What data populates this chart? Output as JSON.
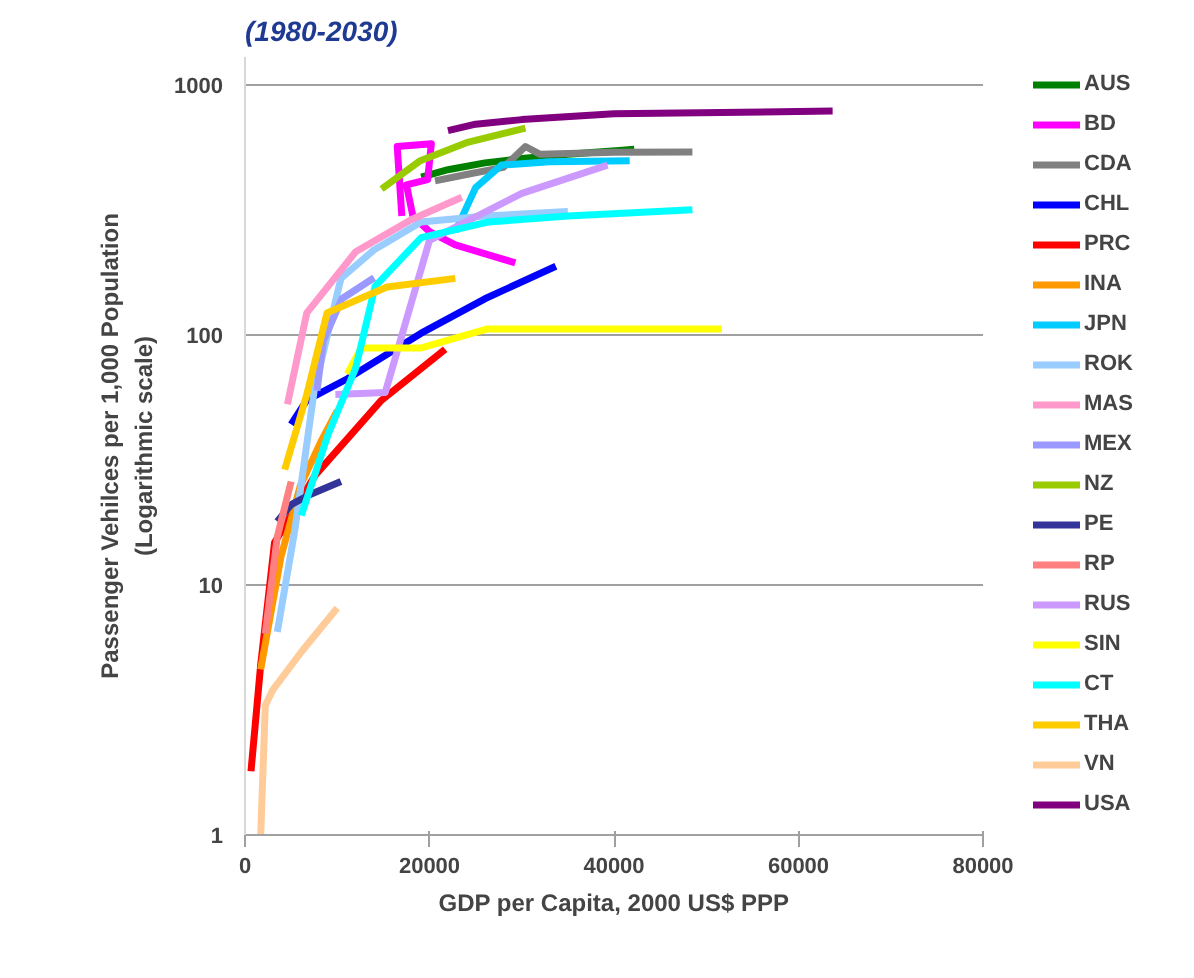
{
  "chart_data": {
    "type": "line",
    "subtitle": "(1980-2030)",
    "xlabel": "GDP per Capita, 2000 US$ PPP",
    "ylabel": "Passenger Vehilces per 1,000 Population\n(Logarithmic scale)",
    "log": "y",
    "xlim": [
      0,
      80000
    ],
    "xticks": [
      0,
      20000,
      40000,
      60000,
      80000
    ],
    "ylim": [
      1,
      1300
    ],
    "yticks": [
      1,
      10,
      100,
      1000
    ],
    "grid": "y",
    "legend": "right",
    "marker": "none",
    "line_style": "solid",
    "series": [
      {
        "name": "AUS",
        "color": "#008000",
        "x": [
          19100,
          22000,
          26000,
          30000,
          35000,
          40900,
          42200
        ],
        "values": [
          430,
          460,
          490,
          510,
          530,
          550,
          555
        ]
      },
      {
        "name": "BD",
        "color": "#ff00ff",
        "x": [
          17000,
          16500,
          20200,
          19800,
          17500,
          18200,
          20000,
          22800,
          29300
        ],
        "values": [
          300,
          570,
          585,
          420,
          400,
          300,
          260,
          230,
          195
        ]
      },
      {
        "name": "CDA",
        "color": "#808080",
        "x": [
          20600,
          24000,
          28000,
          30400,
          32000,
          40000,
          48500
        ],
        "values": [
          415,
          440,
          470,
          570,
          530,
          540,
          542
        ]
      },
      {
        "name": "CHL",
        "color": "#0000ff",
        "x": [
          5000,
          6700,
          11100,
          19100,
          26000,
          33700
        ],
        "values": [
          44,
          55,
          67,
          102,
          140,
          189
        ]
      },
      {
        "name": "PRC",
        "color": "#ff0000",
        "x": [
          650,
          1700,
          3200,
          7600,
          14800,
          21700
        ],
        "values": [
          1.8,
          4.8,
          14.8,
          27.5,
          55,
          88
        ]
      },
      {
        "name": "INA",
        "color": "#ff9900",
        "x": [
          1700,
          3900,
          6000,
          8300,
          10000
        ],
        "values": [
          4.6,
          13,
          25,
          38,
          50
        ]
      },
      {
        "name": "JPN",
        "color": "#00ccff",
        "x": [
          22800,
          25000,
          27800,
          33000,
          41700
        ],
        "values": [
          260,
          390,
          480,
          495,
          500
        ]
      },
      {
        "name": "ROK",
        "color": "#99ccff",
        "x": [
          3500,
          5400,
          7500,
          10400,
          14000,
          19100,
          26000,
          35000
        ],
        "values": [
          6.5,
          16.6,
          60,
          169,
          220,
          284,
          300,
          313
        ]
      },
      {
        "name": "MAS",
        "color": "#ff99cc",
        "x": [
          4600,
          6700,
          12000,
          18000,
          23500
        ],
        "values": [
          53,
          123,
          216,
          290,
          357
        ]
      },
      {
        "name": "MEX",
        "color": "#9999ff",
        "x": [
          7800,
          8500,
          10500,
          14000
        ],
        "values": [
          60,
          95,
          140,
          170
        ]
      },
      {
        "name": "NZ",
        "color": "#99cc00",
        "x": [
          14800,
          19000,
          24000,
          30400
        ],
        "values": [
          385,
          500,
          590,
          675
        ]
      },
      {
        "name": "PE",
        "color": "#333399",
        "x": [
          3500,
          5000,
          7000,
          10400
        ],
        "values": [
          18,
          21,
          23,
          26
        ]
      },
      {
        "name": "RP",
        "color": "#ff8080",
        "x": [
          2200,
          3500,
          5000
        ],
        "values": [
          6.4,
          15.6,
          26
        ]
      },
      {
        "name": "RUS",
        "color": "#cc99ff",
        "x": [
          9800,
          15200,
          20000,
          30000,
          39300
        ],
        "values": [
          58,
          59,
          240,
          370,
          480
        ]
      },
      {
        "name": "SIN",
        "color": "#ffff00",
        "x": [
          11100,
          12600,
          19100,
          26300,
          51700
        ],
        "values": [
          70,
          89,
          89,
          106,
          106
        ]
      },
      {
        "name": "CT",
        "color": "#00ffff",
        "x": [
          6100,
          9000,
          12000,
          14100,
          19100,
          26300,
          35000,
          48500
        ],
        "values": [
          19,
          40,
          74,
          157,
          246,
          284,
          300,
          318
        ]
      },
      {
        "name": "THA",
        "color": "#ffcc00",
        "x": [
          4300,
          6700,
          8900,
          15400,
          22800
        ],
        "values": [
          29,
          58,
          123,
          156,
          169
        ]
      },
      {
        "name": "VN",
        "color": "#ffcc99",
        "x": [
          1700,
          2200,
          3000,
          6100,
          10000
        ],
        "values": [
          1,
          3.3,
          3.8,
          5.4,
          8.1
        ]
      },
      {
        "name": "USA",
        "color": "#800080",
        "x": [
          22000,
          25000,
          30000,
          40000,
          63700
        ],
        "values": [
          660,
          700,
          730,
          770,
          790
        ]
      }
    ]
  }
}
